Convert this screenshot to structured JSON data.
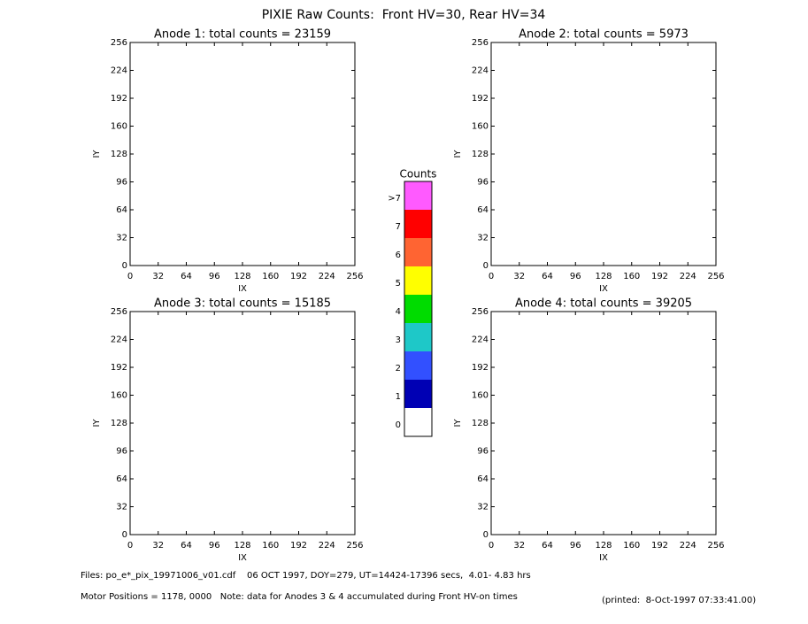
{
  "title": "PIXIE Raw Counts:  Front HV=30, Rear HV=34",
  "chart_data": [
    {
      "type": "image",
      "title": "Anode 1: total counts = 23159",
      "xlabel": "IX",
      "ylabel": "IY",
      "xlim": [
        0,
        256
      ],
      "ylim": [
        0,
        256
      ],
      "xticks": [
        0,
        32,
        64,
        96,
        128,
        160,
        192,
        224,
        256
      ],
      "yticks": [
        0,
        32,
        64,
        96,
        128,
        160,
        192,
        224,
        256
      ]
    },
    {
      "type": "image",
      "title": "Anode 2: total counts = 5973",
      "xlabel": "IX",
      "ylabel": "IY",
      "xlim": [
        0,
        256
      ],
      "ylim": [
        0,
        256
      ],
      "xticks": [
        0,
        32,
        64,
        96,
        128,
        160,
        192,
        224,
        256
      ],
      "yticks": [
        0,
        32,
        64,
        96,
        128,
        160,
        192,
        224,
        256
      ]
    },
    {
      "type": "image",
      "title": "Anode 3: total counts = 15185",
      "xlabel": "IX",
      "ylabel": "IY",
      "xlim": [
        0,
        256
      ],
      "ylim": [
        0,
        256
      ],
      "xticks": [
        0,
        32,
        64,
        96,
        128,
        160,
        192,
        224,
        256
      ],
      "yticks": [
        0,
        32,
        64,
        96,
        128,
        160,
        192,
        224,
        256
      ]
    },
    {
      "type": "image",
      "title": "Anode 4: total counts = 39205",
      "xlabel": "IX",
      "ylabel": "IY",
      "xlim": [
        0,
        256
      ],
      "ylim": [
        0,
        256
      ],
      "xticks": [
        0,
        32,
        64,
        96,
        128,
        160,
        192,
        224,
        256
      ],
      "yticks": [
        0,
        32,
        64,
        96,
        128,
        160,
        192,
        224,
        256
      ]
    }
  ],
  "colorbar": {
    "title": "Counts",
    "categories": [
      "0",
      "1",
      "2",
      "3",
      "4",
      "5",
      "6",
      "7",
      ">7"
    ],
    "colors": [
      "#ffffff",
      "#0000b4",
      "#3250ff",
      "#1ec8c8",
      "#00dc00",
      "#ffff00",
      "#ff6432",
      "#ff0000",
      "#ff5aff"
    ]
  },
  "footer": {
    "files": "Files: po_e*_pix_19971006_v01.cdf    06 OCT 1997, DOY=279, UT=14424-17396 secs,  4.01- 4.83 hrs",
    "motor": "Motor Positions = 1178, 0000   Note: data for Anodes 3 & 4 accumulated during Front HV-on times",
    "printed": "(printed:  8-Oct-1997 07:33:41.00)"
  }
}
